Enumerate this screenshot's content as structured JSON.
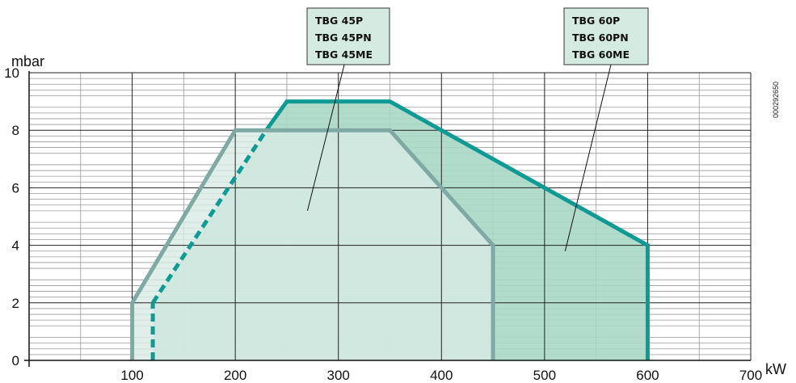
{
  "chart_data": {
    "type": "area",
    "xlabel": "kW",
    "ylabel": "mbar",
    "xlim": [
      0,
      700
    ],
    "ylim": [
      0,
      10
    ],
    "x_ticks": [
      "100",
      "200",
      "300",
      "400",
      "500",
      "600",
      "700"
    ],
    "y_ticks": [
      "0",
      "2",
      "4",
      "6",
      "8",
      "10"
    ],
    "grid": true,
    "series": [
      {
        "name": "TBG 60P / TBG 60PN / TBG 60ME",
        "color": "#0f9a96",
        "fill": "#a9d8c7",
        "points": [
          [
            120,
            0
          ],
          [
            120,
            2
          ],
          [
            250,
            9
          ],
          [
            350,
            9
          ],
          [
            600,
            4
          ],
          [
            600,
            0
          ]
        ],
        "dashed_segments": [
          [
            [
              120,
              0
            ],
            [
              120,
              2
            ]
          ],
          [
            [
              120,
              2
            ],
            [
              230,
              8
            ]
          ]
        ]
      },
      {
        "name": "TBG 45P / TBG 45PN / TBG 45ME",
        "color": "#7faaa4",
        "fill": "#d8ebe3",
        "points": [
          [
            100,
            0
          ],
          [
            100,
            2
          ],
          [
            200,
            8
          ],
          [
            350,
            8
          ],
          [
            450,
            4
          ],
          [
            450,
            0
          ]
        ]
      }
    ],
    "annotations": [
      {
        "lines": [
          "TBG 45P",
          "TBG 45PN",
          "TBG 45ME"
        ],
        "points_to": [
          270,
          5.2
        ]
      },
      {
        "lines": [
          "TBG 60P",
          "TBG 60PN",
          "TBG 60ME"
        ],
        "points_to": [
          520,
          3.8
        ]
      }
    ],
    "code": "000292650"
  }
}
